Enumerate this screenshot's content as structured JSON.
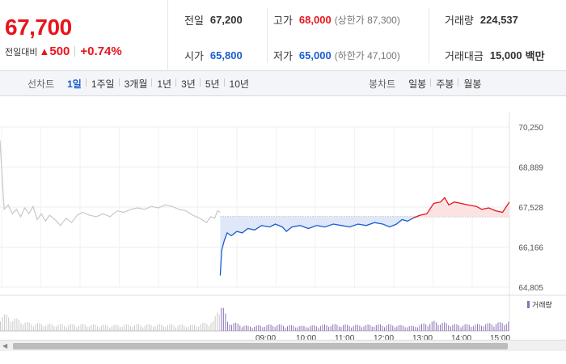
{
  "quote": {
    "price": "67,700",
    "change_label": "전일대비",
    "change_arrow": "▲",
    "change_value": "500",
    "change_pct": "+0.74%",
    "prev_close_label": "전일",
    "prev_close": "67,200",
    "open_label": "시가",
    "open": "65,800",
    "high_label": "고가",
    "high": "68,000",
    "upper_limit": "(상한가 87,300)",
    "low_label": "저가",
    "low": "65,000",
    "lower_limit": "(하한가 47,100)",
    "volume_label": "거래량",
    "volume": "224,537",
    "amount_label": "거래대금",
    "amount": "15,000",
    "amount_unit": "백만"
  },
  "line_tabs": {
    "title": "선차트",
    "items": [
      "1일",
      "1주일",
      "3개월",
      "1년",
      "3년",
      "5년",
      "10년"
    ],
    "active": "1일"
  },
  "candle_tabs": {
    "title": "봉차트",
    "items": [
      "일봉",
      "주봉",
      "월봉"
    ]
  },
  "colors": {
    "up": "#e8141c",
    "down": "#1a5dd0",
    "prev": "#c8c8c8"
  },
  "chart_data": {
    "type": "line",
    "y_ticks": [
      "70,250",
      "68,889",
      "67,528",
      "66,166",
      "64,805"
    ],
    "ylim": [
      64805,
      70250
    ],
    "base_price": 67200,
    "x_ticks": [
      "09:00",
      "10:00",
      "11:00",
      "12:00",
      "13:00",
      "14:00",
      "15:00"
    ],
    "prev_day": [
      [
        0,
        69800
      ],
      [
        3,
        67450
      ],
      [
        6,
        67600
      ],
      [
        9,
        67300
      ],
      [
        12,
        67450
      ],
      [
        15,
        67200
      ],
      [
        18,
        67500
      ],
      [
        21,
        67300
      ],
      [
        24,
        67550
      ],
      [
        27,
        67100
      ],
      [
        30,
        67300
      ],
      [
        33,
        67050
      ],
      [
        36,
        67250
      ],
      [
        40,
        67100
      ],
      [
        44,
        66900
      ],
      [
        48,
        67150
      ],
      [
        52,
        67000
      ],
      [
        56,
        67250
      ],
      [
        60,
        67350
      ],
      [
        65,
        67250
      ],
      [
        70,
        67200
      ],
      [
        75,
        67300
      ],
      [
        80,
        67200
      ],
      [
        85,
        67400
      ],
      [
        90,
        67350
      ],
      [
        95,
        67450
      ],
      [
        100,
        67500
      ],
      [
        105,
        67450
      ],
      [
        110,
        67550
      ],
      [
        115,
        67500
      ],
      [
        120,
        67600
      ],
      [
        125,
        67550
      ],
      [
        130,
        67450
      ],
      [
        135,
        67400
      ],
      [
        140,
        67250
      ],
      [
        145,
        67150
      ],
      [
        150,
        67000
      ],
      [
        153,
        67200
      ],
      [
        156,
        67150
      ],
      [
        158,
        67400
      ],
      [
        160,
        67350
      ]
    ],
    "today": [
      [
        160,
        65200
      ],
      [
        161,
        66050
      ],
      [
        163,
        66400
      ],
      [
        165,
        66650
      ],
      [
        168,
        66550
      ],
      [
        172,
        66700
      ],
      [
        176,
        66650
      ],
      [
        180,
        66800
      ],
      [
        185,
        66750
      ],
      [
        190,
        66900
      ],
      [
        196,
        66850
      ],
      [
        200,
        66950
      ],
      [
        205,
        66850
      ],
      [
        208,
        66700
      ],
      [
        212,
        66850
      ],
      [
        218,
        66900
      ],
      [
        224,
        66800
      ],
      [
        230,
        66900
      ],
      [
        236,
        66850
      ],
      [
        242,
        66950
      ],
      [
        248,
        66900
      ],
      [
        254,
        66850
      ],
      [
        260,
        66950
      ],
      [
        266,
        66900
      ],
      [
        272,
        67000
      ],
      [
        278,
        66950
      ],
      [
        283,
        66850
      ],
      [
        288,
        66950
      ],
      [
        292,
        67100
      ],
      [
        296,
        67050
      ],
      [
        300,
        67150
      ],
      [
        305,
        67250
      ],
      [
        310,
        67300
      ],
      [
        315,
        67650
      ],
      [
        320,
        67700
      ],
      [
        323,
        67850
      ],
      [
        326,
        67600
      ],
      [
        330,
        67700
      ],
      [
        335,
        67650
      ],
      [
        340,
        67600
      ],
      [
        346,
        67550
      ],
      [
        350,
        67450
      ],
      [
        355,
        67500
      ],
      [
        360,
        67400
      ],
      [
        365,
        67350
      ],
      [
        370,
        67700
      ]
    ],
    "volume": [
      [
        0,
        0.55
      ],
      [
        20,
        0.25
      ],
      [
        40,
        0.2
      ],
      [
        60,
        0.2
      ],
      [
        80,
        0.18
      ],
      [
        100,
        0.2
      ],
      [
        120,
        0.2
      ],
      [
        140,
        0.18
      ],
      [
        155,
        0.3
      ],
      [
        160,
        1.0
      ],
      [
        165,
        0.3
      ],
      [
        180,
        0.15
      ],
      [
        200,
        0.2
      ],
      [
        220,
        0.15
      ],
      [
        240,
        0.2
      ],
      [
        260,
        0.18
      ],
      [
        280,
        0.2
      ],
      [
        300,
        0.15
      ],
      [
        315,
        0.3
      ],
      [
        330,
        0.2
      ],
      [
        345,
        0.2
      ],
      [
        360,
        0.25
      ],
      [
        370,
        0.3
      ]
    ],
    "volume_legend": "거래량"
  }
}
